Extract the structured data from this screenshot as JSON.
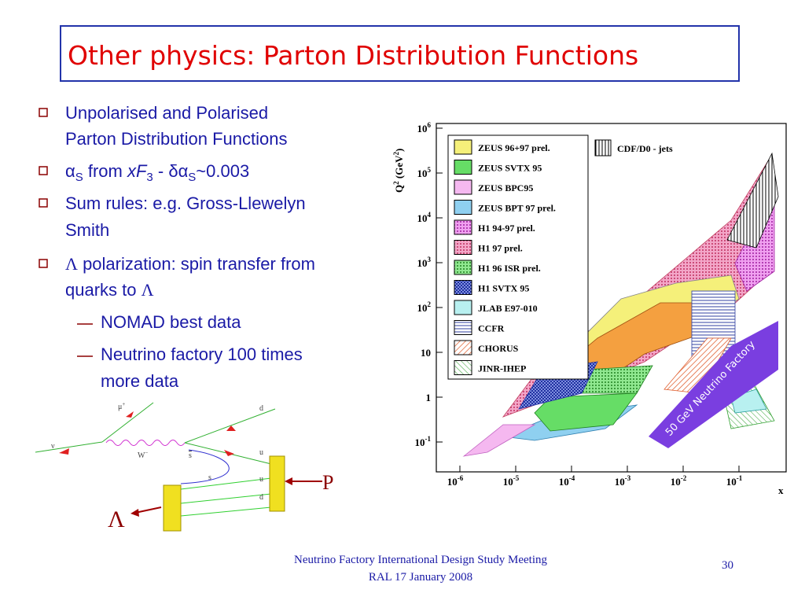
{
  "title": "Other physics: Parton Distribution Functions",
  "bullets": [
    {
      "runs": [
        "Unpolarised and Polarised",
        "Parton Distribution Functions"
      ]
    },
    {
      "runs": [
        "α",
        "S",
        " from ",
        "xF",
        "3",
        " - δα",
        "S",
        "~0.003"
      ]
    },
    {
      "runs": [
        "Sum rules: e.g. Gross-Llewelyn",
        "Smith"
      ]
    },
    {
      "runs": [
        "Λ",
        " polarization: spin transfer from",
        "quarks to ",
        "Λ"
      ]
    }
  ],
  "sub_bullets": [
    "NOMAD best data",
    [
      "Neutrino factory 100 times",
      "more data"
    ]
  ],
  "plot": {
    "y_label": [
      "Q",
      "2",
      " (GeV",
      "2",
      ")"
    ],
    "x_label": "x",
    "yticks": [
      {
        "base": "10",
        "exp": "6"
      },
      {
        "base": "10",
        "exp": "5"
      },
      {
        "base": "10",
        "exp": "4"
      },
      {
        "base": "10",
        "exp": "3"
      },
      {
        "base": "10",
        "exp": "2"
      },
      "10",
      "1",
      {
        "base": "10",
        "exp": "-1"
      }
    ],
    "xticks": [
      {
        "base": "10",
        "exp": "-6"
      },
      {
        "base": "10",
        "exp": "-5"
      },
      {
        "base": "10",
        "exp": "-4"
      },
      {
        "base": "10",
        "exp": "-3"
      },
      {
        "base": "10",
        "exp": "-2"
      },
      {
        "base": "10",
        "exp": "-1"
      }
    ],
    "legend": [
      "ZEUS 96+97 prel.",
      "ZEUS SVTX 95",
      "ZEUS BPC95",
      "ZEUS BPT 97 prel.",
      "H1 94-97 prel.",
      "H1 97 prel.",
      "H1 96 ISR prel.",
      "H1 SVTX 95",
      "JLAB E97-010",
      "CCFR",
      "CHORUS",
      "JINR-IHEP"
    ],
    "cdf_label": "CDF/D0 - jets",
    "band_label": "50 GeV Neutrino Factory"
  },
  "diagram": {
    "nubar": "ν",
    "muplus": "μ",
    "plus": "+",
    "w": "W",
    "wminus": "−",
    "d_top": "d",
    "u_top": "u",
    "sbar": "s",
    "s": "s",
    "u_low": "u",
    "d_low": "d",
    "proton": "P",
    "lambda": "Λ"
  },
  "footer": {
    "line1": "Neutrino Factory International Design Study Meeting",
    "line2": "RAL 17 January 2008",
    "page": "30"
  }
}
